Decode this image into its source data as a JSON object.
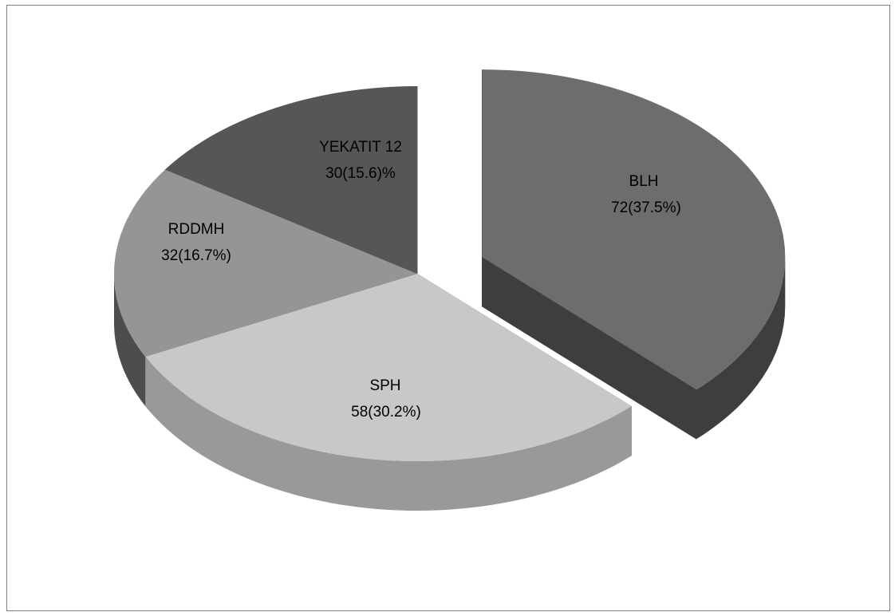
{
  "chart_data": {
    "type": "pie",
    "variant": "3d-exploded",
    "legend": "none",
    "slices": [
      {
        "name": "BLH",
        "value": 72,
        "percent_label": "72(37.5%)",
        "top_color": "#6d6d6d",
        "side_color": "#3e3e3e",
        "explode": true
      },
      {
        "name": "SPH",
        "value": 58,
        "percent_label": "58(30.2%)",
        "top_color": "#c8c8c8",
        "side_color": "#999999",
        "explode": false
      },
      {
        "name": "RDDMH",
        "value": 32,
        "percent_label": "32(16.7%)",
        "top_color": "#959595",
        "side_color": "#4d4d4d",
        "explode": false
      },
      {
        "name": "YEKATIT 12",
        "value": 30,
        "percent_label": "30(15.6)%",
        "top_color": "#565656",
        "side_color": "#2e2e2e",
        "explode": false
      }
    ]
  }
}
